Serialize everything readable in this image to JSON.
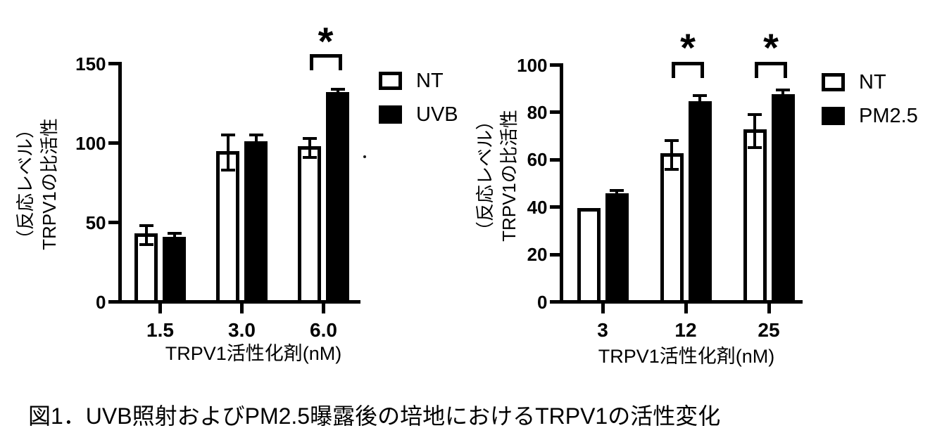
{
  "figure": {
    "caption": "図1．UVB照射およびPM2.5曝露後の培地におけるTRPV1の活性変化"
  },
  "colors": {
    "axis": "#000000",
    "nt_fill": "#ffffff",
    "treated_fill": "#000000",
    "text": "#000000",
    "background": "#ffffff"
  },
  "chart_data": [
    {
      "type": "bar",
      "title": "",
      "xlabel": "TRPV1活性化剤(nM)",
      "ylabel_line1": "TRPV1の比活性",
      "ylabel_line2": "（反応レベル）",
      "categories": [
        "1.5",
        "3.0",
        "6.0"
      ],
      "series": [
        {
          "name": "NT",
          "fill": "#ffffff",
          "values": [
            42,
            94,
            97
          ],
          "errors": [
            6,
            11,
            6
          ]
        },
        {
          "name": "UVB",
          "fill": "#000000",
          "values": [
            40,
            100,
            131
          ],
          "errors": [
            3,
            5,
            3
          ]
        }
      ],
      "ylim": [
        0,
        150
      ],
      "yticks": [
        0,
        50,
        100,
        150
      ],
      "grid": false,
      "legend_position": "right-top",
      "significance": [
        {
          "category": "6.0",
          "label": "*"
        }
      ]
    },
    {
      "type": "bar",
      "title": "",
      "xlabel": "TRPV1活性化剤(nM)",
      "ylabel_line1": "TRPV1の比活性",
      "ylabel_line2": "（反応レベル）",
      "categories": [
        "3",
        "12",
        "25"
      ],
      "series": [
        {
          "name": "NT",
          "fill": "#ffffff",
          "values": [
            39,
            62,
            72
          ],
          "errors": [
            0,
            6,
            7
          ]
        },
        {
          "name": "PM2.5",
          "fill": "#000000",
          "values": [
            45,
            84,
            87
          ],
          "errors": [
            2,
            3,
            2.5
          ]
        }
      ],
      "ylim": [
        0,
        100
      ],
      "yticks": [
        0,
        20,
        40,
        60,
        80,
        100
      ],
      "grid": false,
      "legend_position": "right-top",
      "significance": [
        {
          "category": "12",
          "label": "*"
        },
        {
          "category": "25",
          "label": "*"
        }
      ]
    }
  ]
}
